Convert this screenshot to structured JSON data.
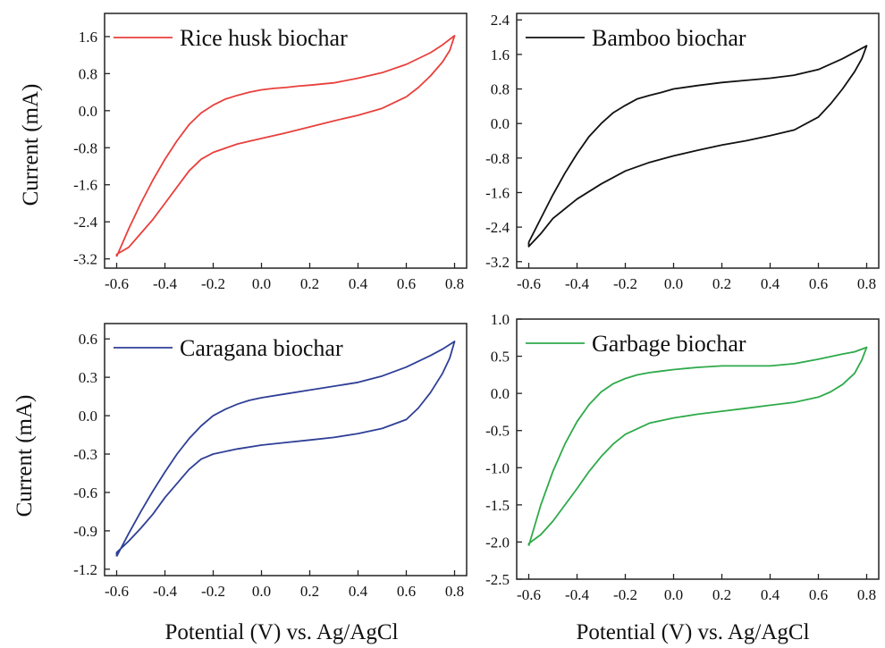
{
  "figure": {
    "ylabel_top": "Current (mA)",
    "ylabel_bottom": "Current (mA)",
    "xlabel_left": "Potential (V) vs. Ag/AgCl",
    "xlabel_right": "Potential (V) vs. Ag/AgCl"
  },
  "chart_data": [
    {
      "type": "line",
      "xlabel": "",
      "ylabel": "Current (mA)",
      "xlim": [
        -0.65,
        0.85
      ],
      "ylim": [
        -3.4,
        2.1
      ],
      "xticks": [
        "-0.6",
        "-0.4",
        "-0.2",
        "0.0",
        "0.2",
        "0.4",
        "0.6",
        "0.8"
      ],
      "xtick_values": [
        -0.6,
        -0.4,
        -0.2,
        0.0,
        0.2,
        0.4,
        0.6,
        0.8
      ],
      "yticks": [
        "1.6",
        "0.8",
        "0.0",
        "-0.8",
        "-1.6",
        "-2.4",
        "-3.2"
      ],
      "ytick_values": [
        1.6,
        0.8,
        0.0,
        -0.8,
        -1.6,
        -2.4,
        -3.2
      ],
      "legend": "top-left",
      "grid": false,
      "series": [
        {
          "name": "Rice husk biochar",
          "color": "#e8403c",
          "x": [
            -0.6,
            -0.55,
            -0.5,
            -0.45,
            -0.4,
            -0.35,
            -0.3,
            -0.25,
            -0.2,
            -0.15,
            -0.1,
            -0.05,
            0.0,
            0.05,
            0.1,
            0.15,
            0.2,
            0.3,
            0.4,
            0.5,
            0.6,
            0.7,
            0.75,
            0.8,
            0.78,
            0.75,
            0.7,
            0.65,
            0.6,
            0.5,
            0.4,
            0.3,
            0.2,
            0.1,
            0.0,
            -0.1,
            -0.2,
            -0.25,
            -0.3,
            -0.35,
            -0.4,
            -0.45,
            -0.5,
            -0.55,
            -0.6
          ],
          "y": [
            -3.15,
            -2.55,
            -2.0,
            -1.5,
            -1.05,
            -0.65,
            -0.3,
            -0.05,
            0.12,
            0.25,
            0.33,
            0.4,
            0.45,
            0.48,
            0.5,
            0.53,
            0.55,
            0.6,
            0.7,
            0.82,
            1.0,
            1.25,
            1.42,
            1.62,
            1.3,
            1.05,
            0.75,
            0.5,
            0.3,
            0.05,
            -0.1,
            -0.22,
            -0.35,
            -0.48,
            -0.6,
            -0.72,
            -0.9,
            -1.05,
            -1.3,
            -1.65,
            -2.0,
            -2.35,
            -2.65,
            -2.95,
            -3.1
          ]
        }
      ]
    },
    {
      "type": "line",
      "xlabel": "",
      "ylabel": "",
      "xlim": [
        -0.65,
        0.85
      ],
      "ylim": [
        -3.35,
        2.55
      ],
      "xticks": [
        "-0.6",
        "-0.4",
        "-0.2",
        "0.0",
        "0.2",
        "0.4",
        "0.6",
        "0.8"
      ],
      "xtick_values": [
        -0.6,
        -0.4,
        -0.2,
        0.0,
        0.2,
        0.4,
        0.6,
        0.8
      ],
      "yticks": [
        "2.4",
        "1.6",
        "0.8",
        "0.0",
        "-0.8",
        "-1.6",
        "-2.4",
        "-3.2"
      ],
      "ytick_values": [
        2.4,
        1.6,
        0.8,
        0.0,
        -0.8,
        -1.6,
        -2.4,
        -3.2
      ],
      "legend": "top-left",
      "grid": false,
      "series": [
        {
          "name": "Bamboo biochar",
          "color": "#111111",
          "x": [
            -0.6,
            -0.55,
            -0.5,
            -0.45,
            -0.4,
            -0.35,
            -0.3,
            -0.25,
            -0.2,
            -0.15,
            -0.1,
            -0.05,
            0.0,
            0.1,
            0.2,
            0.3,
            0.4,
            0.5,
            0.6,
            0.7,
            0.8,
            0.78,
            0.75,
            0.7,
            0.65,
            0.6,
            0.5,
            0.4,
            0.3,
            0.2,
            0.1,
            0.0,
            -0.1,
            -0.2,
            -0.3,
            -0.4,
            -0.5,
            -0.55,
            -0.6
          ],
          "y": [
            -2.75,
            -2.2,
            -1.65,
            -1.15,
            -0.7,
            -0.3,
            0.0,
            0.25,
            0.42,
            0.57,
            0.65,
            0.72,
            0.8,
            0.88,
            0.95,
            1.0,
            1.05,
            1.12,
            1.25,
            1.5,
            1.8,
            1.5,
            1.2,
            0.8,
            0.45,
            0.15,
            -0.15,
            -0.28,
            -0.4,
            -0.5,
            -0.62,
            -0.75,
            -0.9,
            -1.1,
            -1.4,
            -1.75,
            -2.2,
            -2.55,
            -2.85
          ]
        }
      ]
    },
    {
      "type": "line",
      "xlabel": "Potential (V) vs. Ag/AgCl",
      "ylabel": "Current (mA)",
      "xlim": [
        -0.65,
        0.85
      ],
      "ylim": [
        -1.25,
        0.72
      ],
      "xticks": [
        "-0.6",
        "-0.4",
        "-0.2",
        "0.0",
        "0.2",
        "0.4",
        "0.6",
        "0.8"
      ],
      "xtick_values": [
        -0.6,
        -0.4,
        -0.2,
        0.0,
        0.2,
        0.4,
        0.6,
        0.8
      ],
      "yticks": [
        "0.6",
        "0.3",
        "0.0",
        "-0.3",
        "-0.6",
        "-0.9",
        "-1.2"
      ],
      "ytick_values": [
        0.6,
        0.3,
        0.0,
        -0.3,
        -0.6,
        -0.9,
        -1.2
      ],
      "legend": "top-left",
      "grid": false,
      "series": [
        {
          "name": "Caragana biochar",
          "color": "#2f3f96",
          "x": [
            -0.6,
            -0.55,
            -0.5,
            -0.45,
            -0.4,
            -0.35,
            -0.3,
            -0.25,
            -0.2,
            -0.15,
            -0.1,
            -0.05,
            0.0,
            0.1,
            0.2,
            0.3,
            0.4,
            0.5,
            0.6,
            0.7,
            0.75,
            0.8,
            0.78,
            0.75,
            0.7,
            0.65,
            0.6,
            0.5,
            0.4,
            0.3,
            0.2,
            0.1,
            0.0,
            -0.1,
            -0.2,
            -0.25,
            -0.3,
            -0.35,
            -0.4,
            -0.45,
            -0.5,
            -0.55,
            -0.6
          ],
          "y": [
            -1.1,
            -0.92,
            -0.75,
            -0.59,
            -0.44,
            -0.3,
            -0.18,
            -0.08,
            0.0,
            0.05,
            0.09,
            0.12,
            0.14,
            0.17,
            0.2,
            0.23,
            0.26,
            0.31,
            0.38,
            0.47,
            0.52,
            0.58,
            0.45,
            0.33,
            0.18,
            0.06,
            -0.03,
            -0.1,
            -0.14,
            -0.17,
            -0.19,
            -0.21,
            -0.23,
            -0.26,
            -0.3,
            -0.34,
            -0.42,
            -0.53,
            -0.64,
            -0.77,
            -0.88,
            -0.98,
            -1.07
          ]
        }
      ]
    },
    {
      "type": "line",
      "xlabel": "Potential (V) vs. Ag/AgCl",
      "ylabel": "",
      "xlim": [
        -0.65,
        0.85
      ],
      "ylim": [
        -2.5,
        1.0
      ],
      "xticks": [
        "-0.6",
        "-0.4",
        "-0.2",
        "0.0",
        "0.2",
        "0.4",
        "0.6",
        "0.8"
      ],
      "xtick_values": [
        -0.6,
        -0.4,
        -0.2,
        0.0,
        0.2,
        0.4,
        0.6,
        0.8
      ],
      "yticks": [
        "1.0",
        "0.5",
        "0.0",
        "-0.5",
        "-1.0",
        "-1.5",
        "-2.0",
        "-2.5"
      ],
      "ytick_values": [
        1.0,
        0.5,
        0.0,
        -0.5,
        -1.0,
        -1.5,
        -2.0,
        -2.5
      ],
      "legend": "top-left",
      "grid": false,
      "series": [
        {
          "name": "Garbage biochar",
          "color": "#2eaa4a",
          "x": [
            -0.6,
            -0.55,
            -0.5,
            -0.45,
            -0.4,
            -0.35,
            -0.3,
            -0.25,
            -0.2,
            -0.15,
            -0.1,
            -0.05,
            0.0,
            0.1,
            0.2,
            0.3,
            0.4,
            0.5,
            0.6,
            0.7,
            0.75,
            0.8,
            0.78,
            0.75,
            0.7,
            0.65,
            0.6,
            0.5,
            0.4,
            0.3,
            0.2,
            0.1,
            0.0,
            -0.1,
            -0.2,
            -0.25,
            -0.3,
            -0.35,
            -0.4,
            -0.45,
            -0.5,
            -0.55,
            -0.6
          ],
          "y": [
            -2.05,
            -1.5,
            -1.05,
            -0.68,
            -0.38,
            -0.15,
            0.02,
            0.13,
            0.2,
            0.25,
            0.28,
            0.3,
            0.32,
            0.35,
            0.37,
            0.37,
            0.37,
            0.4,
            0.46,
            0.53,
            0.56,
            0.62,
            0.45,
            0.27,
            0.12,
            0.02,
            -0.05,
            -0.12,
            -0.16,
            -0.2,
            -0.24,
            -0.28,
            -0.33,
            -0.4,
            -0.55,
            -0.68,
            -0.85,
            -1.05,
            -1.28,
            -1.5,
            -1.72,
            -1.9,
            -2.02
          ]
        }
      ]
    }
  ]
}
